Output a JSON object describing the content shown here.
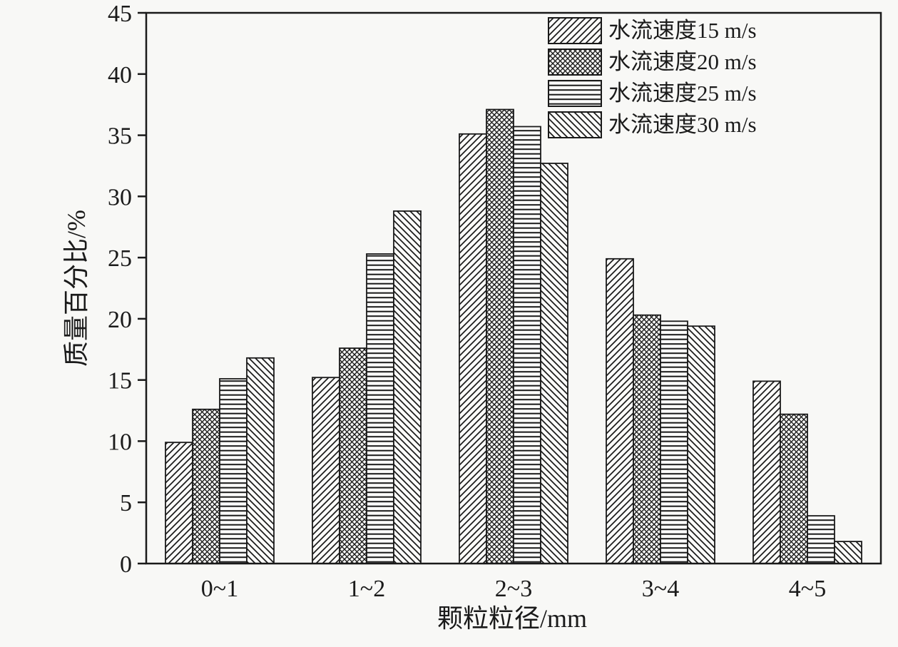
{
  "chart_data": {
    "type": "bar",
    "title": "",
    "xlabel": "颗粒粒径/mm",
    "ylabel": "质量百分比/%",
    "ylim": [
      0,
      45
    ],
    "ytick_step": 5,
    "grid": false,
    "legend_position": "top-right",
    "categories": [
      "0~1",
      "1~2",
      "2~3",
      "3~4",
      "4~5"
    ],
    "series": [
      {
        "name": "水流速度15 m/s",
        "pattern": "diagonal-up",
        "values": [
          9.9,
          15.2,
          35.1,
          24.9,
          14.9
        ]
      },
      {
        "name": "水流速度20 m/s",
        "pattern": "crosshatch",
        "values": [
          12.6,
          17.6,
          37.1,
          20.3,
          12.2
        ]
      },
      {
        "name": "水流速度25 m/s",
        "pattern": "horizontal",
        "values": [
          15.1,
          25.3,
          35.7,
          19.8,
          3.9
        ]
      },
      {
        "name": "水流速度30 m/s",
        "pattern": "diagonal-down",
        "values": [
          16.8,
          28.8,
          32.7,
          19.4,
          1.8
        ]
      }
    ],
    "colors": {
      "ink": "#1a1a1a",
      "background": "#f8f8f6",
      "bar_fill": "#fcfcfa"
    }
  }
}
